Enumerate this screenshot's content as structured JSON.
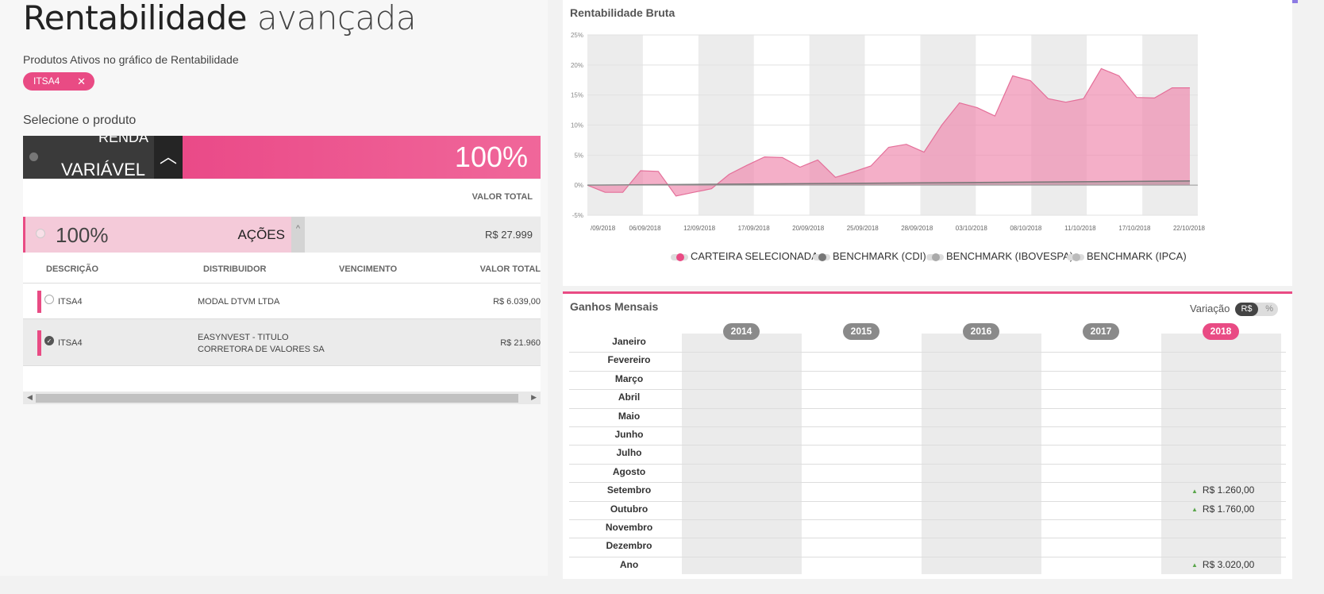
{
  "page": {
    "title_strong": "Rentabilidade",
    "title_light": "avançada",
    "active_products_label": "Produtos Ativos no gráfico de Rentabilidade",
    "active_chip": "ITSA4",
    "select_product_label": "Selecione o produto"
  },
  "renda_variavel": {
    "line1": "RENDA",
    "line2": "VARIÁVEL",
    "percent": "100%"
  },
  "valor_total_header": "VALOR TOTAL",
  "acoes": {
    "percent": "100%",
    "name": "AÇÕES",
    "value": "R$ 27.999"
  },
  "table": {
    "headers": [
      "DESCRIÇÃO",
      "DISTRIBUIDOR",
      "VENCIMENTO",
      "VALOR TOTAL"
    ],
    "rows": [
      {
        "desc": "ITSA4",
        "dist1": "MODAL DTVM LTDA",
        "dist2": "",
        "venc": "",
        "value": "R$ 6.039,00",
        "checked": false
      },
      {
        "desc": "ITSA4",
        "dist1": "EASYNVEST - TITULO",
        "dist2": "CORRETORA DE VALORES SA",
        "venc": "",
        "value": "R$ 21.960",
        "checked": true
      }
    ]
  },
  "rentabilidade_bruta": {
    "title": "Rentabilidade Bruta"
  },
  "chart_data": {
    "type": "area",
    "title": "Rentabilidade Bruta",
    "y_ticks": [
      "25%",
      "20%",
      "15%",
      "10%",
      "5%",
      "0%",
      "-5%"
    ],
    "ylim": [
      -5,
      25
    ],
    "x_ticks": [
      "/09/2018",
      "06/09/2018",
      "12/09/2018",
      "17/09/2018",
      "20/09/2018",
      "25/09/2018",
      "28/09/2018",
      "03/10/2018",
      "08/10/2018",
      "11/10/2018",
      "17/10/2018",
      "22/10/2018"
    ],
    "series": [
      {
        "name": "CARTEIRA SELECIONADA",
        "color": "#e94b84",
        "values": [
          0,
          -1.2,
          -1.2,
          2.4,
          2.3,
          -1.8,
          -1.2,
          -0.6,
          1.8,
          3.3,
          4.7,
          4.6,
          3.0,
          4.2,
          1.3,
          2.2,
          3.2,
          6.3,
          6.8,
          5.5,
          10.0,
          13.7,
          12.9,
          11.5,
          18.2,
          17.4,
          14.4,
          13.8,
          14.4,
          19.4,
          18.2,
          14.6,
          14.5,
          16.2,
          16.2
        ],
        "x_ticks_span": "31/08/2018 – 24/10/2018"
      },
      {
        "name": "BENCHMARK (CDI)",
        "color": "#777777",
        "values": [
          0,
          0.7
        ]
      },
      {
        "name": "BENCHMARK (IBOVESPA)",
        "color": "#aaaaaa",
        "values": []
      },
      {
        "name": "BENCHMARK (IPCA)",
        "color": "#bbbbbb",
        "values": []
      }
    ],
    "legend": "bottom",
    "grid": true
  },
  "ganhos": {
    "title": "Ganhos Mensais",
    "variation_label": "Variação",
    "variation_options": [
      "R$",
      "%"
    ],
    "years": [
      "2014",
      "2015",
      "2016",
      "2017",
      "2018"
    ],
    "active_year": "2018",
    "months": [
      "Janeiro",
      "Fevereiro",
      "Março",
      "Abril",
      "Maio",
      "Junho",
      "Julho",
      "Agosto",
      "Setembro",
      "Outubro",
      "Novembro",
      "Dezembro",
      "Ano"
    ],
    "values_2018": {
      "Setembro": "R$  1.260,00",
      "Outubro": "R$  1.760,00",
      "Ano": "R$  3.020,00"
    }
  },
  "colors": {
    "accent": "#e94b84",
    "dark": "#3a3a3a"
  }
}
